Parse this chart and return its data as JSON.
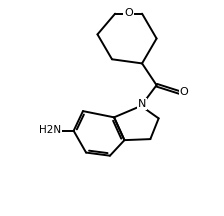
{
  "background_color": "#ffffff",
  "line_color": "#000000",
  "line_width": 1.4,
  "font_size": 7.5,
  "figsize": [
    2.24,
    2.16
  ],
  "dpi": 100,
  "xlim": [
    0.0,
    10.0
  ],
  "ylim": [
    0.0,
    10.0
  ],
  "O_thp": "O",
  "N_ind": "N",
  "O_carb": "O",
  "NH2": "H2N",
  "thp_ring": [
    [
      5.15,
      9.55
    ],
    [
      6.45,
      9.55
    ],
    [
      7.15,
      8.35
    ],
    [
      6.45,
      7.15
    ],
    [
      5.0,
      7.35
    ],
    [
      4.3,
      8.55
    ]
  ],
  "C4_thp": [
    6.45,
    7.15
  ],
  "carb_C": [
    7.15,
    6.1
  ],
  "carb_O": [
    8.25,
    5.75
  ],
  "N1": [
    6.4,
    5.1
  ],
  "C2": [
    7.25,
    4.5
  ],
  "C3": [
    6.85,
    3.5
  ],
  "C3a": [
    5.6,
    3.45
  ],
  "C7a": [
    5.1,
    4.55
  ],
  "C4": [
    4.9,
    2.7
  ],
  "C5": [
    3.75,
    2.85
  ],
  "C6": [
    3.15,
    3.9
  ],
  "C7": [
    3.6,
    4.85
  ],
  "NH2_x": 1.75,
  "NH2_y": 3.9
}
